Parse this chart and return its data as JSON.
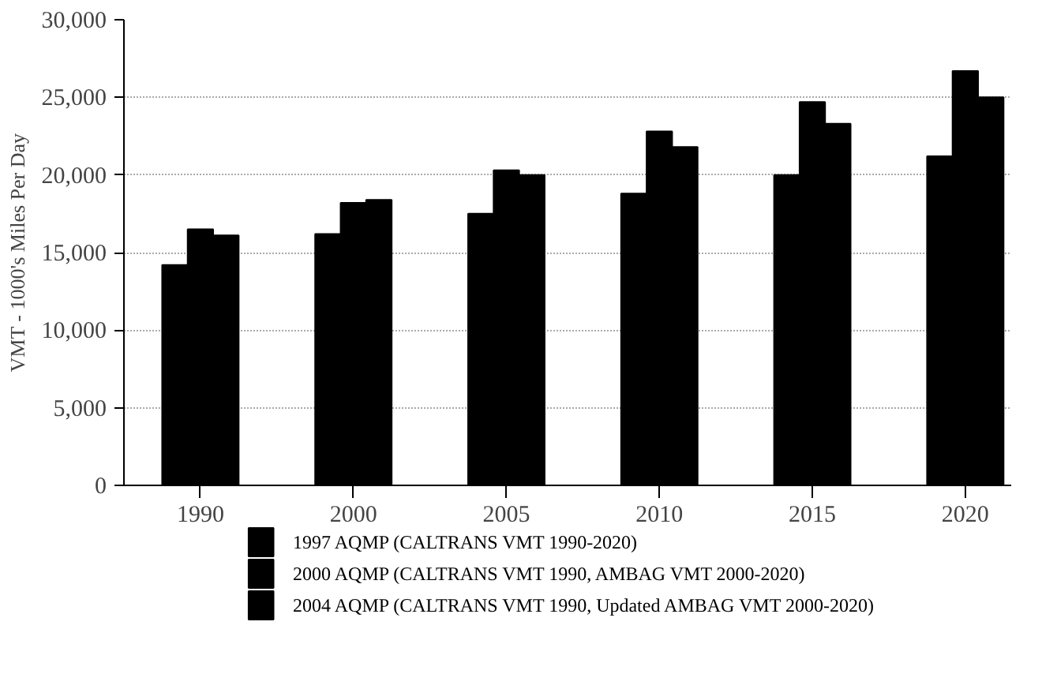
{
  "chart_data": {
    "type": "bar",
    "ylabel": "VMT - 1000's Miles Per Day",
    "categories": [
      "1990",
      "2000",
      "2005",
      "2010",
      "2015",
      "2020"
    ],
    "series": [
      {
        "name": "1997 AQMP (CALTRANS VMT 1990-2020)",
        "color": "#000000",
        "values": [
          14200,
          16200,
          17500,
          18800,
          20000,
          21200
        ]
      },
      {
        "name": "2000 AQMP (CALTRANS VMT 1990, AMBAG VMT 2000-2020)",
        "color": "#000000",
        "values": [
          16500,
          18200,
          20300,
          22800,
          24700,
          26700
        ]
      },
      {
        "name": "2004 AQMP (CALTRANS VMT 1990, Updated AMBAG VMT 2000-2020)",
        "color": "#000000",
        "values": [
          16100,
          18400,
          20000,
          21800,
          23300,
          25000
        ]
      }
    ],
    "ylim": [
      0,
      30000
    ],
    "yticks": [
      {
        "value": 0,
        "label": "0"
      },
      {
        "value": 5000,
        "label": "5,000"
      },
      {
        "value": 10000,
        "label": "10,000"
      },
      {
        "value": 15000,
        "label": "15,000"
      },
      {
        "value": 20000,
        "label": "20,000"
      },
      {
        "value": 25000,
        "label": "25,000"
      },
      {
        "value": 30000,
        "label": "30,000"
      }
    ],
    "grid": "y",
    "legend": "bottom"
  }
}
